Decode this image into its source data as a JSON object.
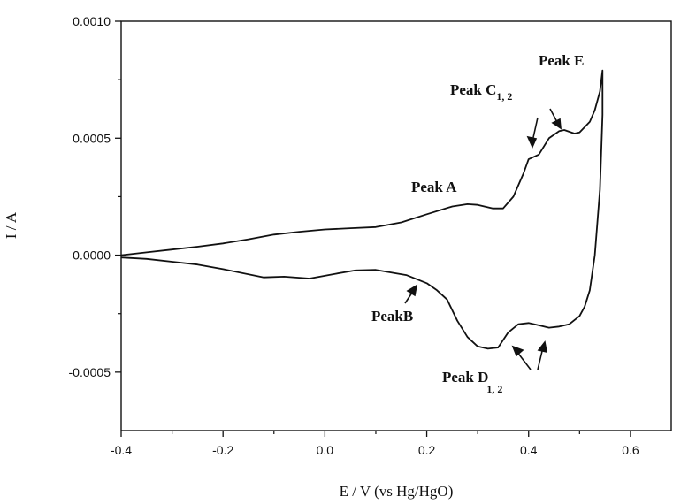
{
  "chart_data": {
    "type": "line",
    "title": "",
    "xlabel": "E / V (vs Hg/HgO)",
    "ylabel": "I / A",
    "xlim": [
      -0.4,
      0.68
    ],
    "ylim": [
      -0.00075,
      0.001
    ],
    "x_ticks": [
      -0.4,
      -0.2,
      0.0,
      0.2,
      0.4,
      0.6
    ],
    "x_tick_labels": [
      "-0.4",
      "-0.2",
      "0.0",
      "0.2",
      "0.4",
      "0.6"
    ],
    "y_ticks": [
      -0.0005,
      0.0,
      0.0005,
      0.001
    ],
    "y_tick_labels": [
      "-0.0005",
      "0.0000",
      "0.0005",
      "0.0010"
    ],
    "grid": false,
    "legend": "none",
    "line_color": "#111111",
    "series": [
      {
        "x": [
          -0.4,
          -0.35,
          -0.3,
          -0.25,
          -0.2,
          -0.15,
          -0.1,
          -0.05,
          0.0,
          0.05,
          0.1,
          0.15,
          0.2,
          0.25,
          0.28,
          0.3,
          0.33,
          0.35,
          0.37,
          0.39,
          0.4,
          0.42,
          0.44,
          0.46,
          0.47,
          0.49,
          0.5,
          0.52,
          0.53,
          0.54,
          0.545,
          0.545,
          0.54,
          0.53,
          0.52,
          0.51,
          0.5,
          0.48,
          0.46,
          0.44,
          0.42,
          0.4,
          0.38,
          0.36,
          0.34,
          0.32,
          0.3,
          0.28,
          0.26,
          0.24,
          0.22,
          0.2,
          0.16,
          0.1,
          0.06,
          0.02,
          -0.03,
          -0.08,
          -0.12,
          -0.2,
          -0.25,
          -0.3,
          -0.35,
          -0.4
        ],
        "y": [
          0.0,
          1.2e-05,
          2.4e-05,
          3.6e-05,
          5e-05,
          6.8e-05,
          8.8e-05,
          0.0001,
          0.00011,
          0.000115,
          0.00012,
          0.00014,
          0.000175,
          0.000208,
          0.000218,
          0.000215,
          0.0002,
          0.0002,
          0.00025,
          0.00035,
          0.00041,
          0.00043,
          0.0005,
          0.00053,
          0.000535,
          0.00052,
          0.000525,
          0.00057,
          0.00062,
          0.0007,
          0.00079,
          0.0006,
          0.00028,
          0.0,
          -0.00015,
          -0.00022,
          -0.00026,
          -0.000295,
          -0.000305,
          -0.00031,
          -0.0003,
          -0.00029,
          -0.000295,
          -0.00033,
          -0.000395,
          -0.0004,
          -0.00039,
          -0.00035,
          -0.00028,
          -0.00019,
          -0.00015,
          -0.00012,
          -8.5e-05,
          -6.3e-05,
          -6.5e-05,
          -8e-05,
          -0.0001,
          -9.2e-05,
          -9.5e-05,
          -6e-05,
          -4e-05,
          -2.8e-05,
          -1.6e-05,
          -1e-05
        ]
      }
    ],
    "annotations": [
      {
        "main": "Peak E",
        "sub": ""
      },
      {
        "main": "Peak C",
        "sub": "1, 2"
      },
      {
        "main": "Peak A",
        "sub": ""
      },
      {
        "main": "PeakB",
        "sub": ""
      },
      {
        "main": "Peak D",
        "sub": "1, 2"
      }
    ]
  }
}
